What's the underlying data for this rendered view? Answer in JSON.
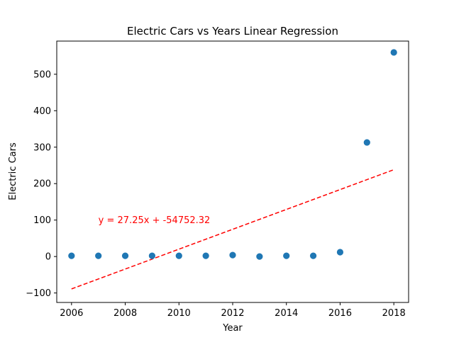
{
  "chart_data": {
    "type": "scatter",
    "title": "Electric Cars vs Years Linear Regression",
    "xlabel": "Year",
    "ylabel": "Electric Cars",
    "xlim": [
      2005.45,
      2018.55
    ],
    "ylim": [
      -126,
      591
    ],
    "xticks": [
      2006,
      2008,
      2010,
      2012,
      2014,
      2016,
      2018
    ],
    "yticks": [
      -100,
      0,
      100,
      200,
      300,
      400,
      500
    ],
    "grid": false,
    "points": {
      "color": "#1f77b4",
      "x": [
        2006,
        2007,
        2008,
        2009,
        2010,
        2011,
        2012,
        2013,
        2014,
        2015,
        2016,
        2017,
        2018
      ],
      "y": [
        2,
        2,
        2,
        2,
        2,
        2,
        4,
        0,
        2,
        2,
        12,
        313,
        560
      ]
    },
    "regression": {
      "color": "#ff0000",
      "style": "dashed",
      "slope": 27.25,
      "intercept": -54752.32,
      "x_range": [
        2006,
        2018
      ]
    },
    "annotation": {
      "text": "y = 27.25x + -54752.32",
      "x": 2007,
      "y": 100,
      "color": "#ff0000"
    }
  }
}
